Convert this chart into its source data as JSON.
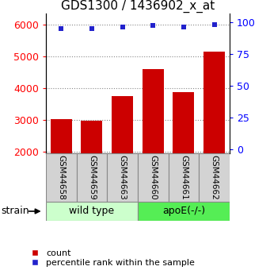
{
  "title": "GDS1300 / 1436902_x_at",
  "samples": [
    "GSM44658",
    "GSM44659",
    "GSM44663",
    "GSM44660",
    "GSM44661",
    "GSM44662"
  ],
  "counts": [
    3020,
    2975,
    3760,
    4600,
    3880,
    5150
  ],
  "percentiles": [
    95.5,
    95.5,
    96.5,
    97.5,
    96.5,
    98.5
  ],
  "ylim_left": [
    1950,
    6350
  ],
  "ylim_right": [
    -3.5,
    107
  ],
  "yticks_left": [
    2000,
    3000,
    4000,
    5000,
    6000
  ],
  "yticks_right": [
    0,
    25,
    50,
    75,
    100
  ],
  "bar_color": "#cc0000",
  "dot_color": "#2222cc",
  "bar_width": 0.7,
  "groups": [
    {
      "label": "wild type",
      "start": 0,
      "end": 3,
      "color": "#ccffcc",
      "border": "#aaaaaa"
    },
    {
      "label": "apoE(-/-)",
      "start": 3,
      "end": 6,
      "color": "#55ee55",
      "border": "#aaaaaa"
    }
  ],
  "strain_label": "strain",
  "legend_count_label": "count",
  "legend_pct_label": "percentile rank within the sample",
  "title_fontsize": 11,
  "tick_fontsize": 9,
  "sample_fontsize": 7.5,
  "group_fontsize": 9,
  "legend_fontsize": 8,
  "sample_box_color": "#d3d3d3",
  "sample_box_border": "#888888"
}
